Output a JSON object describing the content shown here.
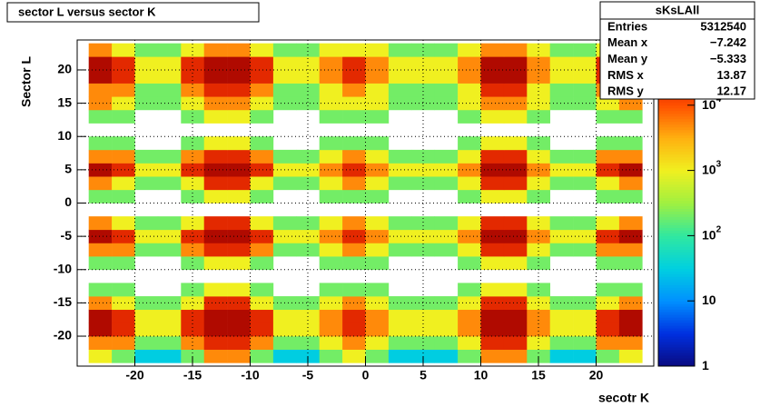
{
  "chart_data": {
    "type": "heatmap",
    "title": "sector L versus sector K",
    "x_label": "secotr K",
    "y_label": "Sector L",
    "xlim": [
      -25,
      25
    ],
    "ylim": [
      -24.5,
      24.5
    ],
    "xticks": [
      -20,
      -15,
      -10,
      -5,
      0,
      5,
      10,
      15,
      20
    ],
    "yticks": [
      -20,
      -15,
      -10,
      -5,
      0,
      5,
      10,
      15,
      20
    ],
    "grid": true,
    "z_scale": "log",
    "zlim": [
      1,
      100000
    ],
    "zticks": [
      {
        "value": 1,
        "label": "1"
      },
      {
        "value": 10,
        "label": "10"
      },
      {
        "value": 100,
        "label": "10",
        "exponent": "2"
      },
      {
        "value": 1000,
        "label": "10",
        "exponent": "3"
      },
      {
        "value": 10000,
        "label": "10",
        "exponent": "4"
      }
    ],
    "palette": [
      "#0a0a80",
      "#0030e0",
      "#0090ff",
      "#00d0e0",
      "#30e8a0",
      "#a0f040",
      "#f0f020",
      "#ffb010",
      "#ff5000",
      "#d01000",
      "#800000"
    ],
    "x_bins": [
      -24,
      -22,
      -20,
      -18,
      -16,
      -14,
      -12,
      -10,
      -8,
      -6,
      -4,
      -2,
      0,
      2,
      4,
      6,
      8,
      10,
      12,
      14,
      16,
      18,
      20,
      22,
      24
    ],
    "y_bins": [
      -24,
      -22,
      -20,
      -18,
      -16,
      -14,
      -12,
      -10,
      -8,
      -6,
      -4,
      -2,
      0,
      2,
      4,
      6,
      8,
      10,
      12,
      14,
      16,
      18,
      20,
      22,
      24
    ],
    "z": [
      [
        1000,
        200,
        30,
        30,
        200,
        5000,
        5000,
        200,
        30,
        30,
        200,
        1000,
        200,
        30,
        30,
        30,
        200,
        5000,
        5000,
        200,
        30,
        30,
        200,
        1000
      ],
      [
        5000,
        5000,
        200,
        200,
        5000,
        20000,
        20000,
        5000,
        200,
        200,
        1000,
        5000,
        1000,
        200,
        200,
        200,
        1000,
        20000,
        20000,
        1000,
        200,
        200,
        5000,
        5000
      ],
      [
        50000,
        20000,
        1000,
        1000,
        20000,
        50000,
        50000,
        20000,
        1000,
        1000,
        5000,
        20000,
        5000,
        1000,
        1000,
        1000,
        5000,
        50000,
        50000,
        5000,
        1000,
        1000,
        20000,
        50000
      ],
      [
        50000,
        20000,
        1000,
        1000,
        20000,
        50000,
        50000,
        20000,
        1000,
        1000,
        5000,
        20000,
        5000,
        1000,
        1000,
        1000,
        5000,
        50000,
        50000,
        5000,
        1000,
        1000,
        20000,
        50000
      ],
      [
        5000,
        1000,
        200,
        200,
        1000,
        20000,
        20000,
        1000,
        200,
        200,
        1000,
        5000,
        1000,
        200,
        200,
        200,
        1000,
        20000,
        20000,
        1000,
        200,
        200,
        1000,
        5000
      ],
      [
        200,
        200,
        0,
        0,
        200,
        1000,
        1000,
        200,
        0,
        0,
        200,
        200,
        200,
        0,
        0,
        0,
        200,
        1000,
        1000,
        200,
        0,
        0,
        200,
        200
      ],
      [
        0,
        0,
        0,
        0,
        0,
        0,
        0,
        0,
        0,
        0,
        0,
        0,
        0,
        0,
        0,
        0,
        0,
        0,
        0,
        0,
        0,
        0,
        0,
        0
      ],
      [
        200,
        200,
        0,
        0,
        200,
        1000,
        1000,
        200,
        0,
        0,
        200,
        200,
        200,
        0,
        0,
        0,
        200,
        1000,
        1000,
        200,
        0,
        0,
        200,
        200
      ],
      [
        5000,
        5000,
        200,
        200,
        5000,
        20000,
        20000,
        5000,
        200,
        200,
        1000,
        5000,
        1000,
        200,
        200,
        200,
        1000,
        20000,
        20000,
        1000,
        200,
        200,
        5000,
        5000
      ],
      [
        50000,
        20000,
        1000,
        1000,
        20000,
        50000,
        50000,
        20000,
        1000,
        1000,
        5000,
        20000,
        5000,
        1000,
        1000,
        1000,
        5000,
        50000,
        50000,
        5000,
        1000,
        1000,
        20000,
        50000
      ],
      [
        5000,
        1000,
        200,
        200,
        1000,
        20000,
        20000,
        1000,
        200,
        200,
        1000,
        5000,
        1000,
        200,
        200,
        200,
        1000,
        20000,
        20000,
        1000,
        200,
        200,
        1000,
        5000
      ],
      [
        0,
        0,
        0,
        0,
        0,
        0,
        0,
        0,
        0,
        0,
        0,
        0,
        0,
        0,
        0,
        0,
        0,
        0,
        0,
        0,
        0,
        0,
        0,
        0
      ],
      [
        200,
        200,
        0,
        0,
        200,
        1000,
        1000,
        200,
        0,
        0,
        200,
        200,
        200,
        0,
        0,
        0,
        200,
        1000,
        1000,
        200,
        0,
        0,
        200,
        200
      ],
      [
        5000,
        1000,
        200,
        200,
        1000,
        20000,
        20000,
        1000,
        200,
        200,
        1000,
        5000,
        1000,
        200,
        200,
        200,
        1000,
        20000,
        20000,
        1000,
        200,
        200,
        1000,
        5000
      ],
      [
        50000,
        20000,
        1000,
        1000,
        20000,
        50000,
        50000,
        20000,
        1000,
        1000,
        5000,
        20000,
        5000,
        1000,
        1000,
        1000,
        5000,
        50000,
        50000,
        5000,
        1000,
        1000,
        20000,
        50000
      ],
      [
        5000,
        5000,
        200,
        200,
        5000,
        20000,
        20000,
        5000,
        200,
        200,
        1000,
        5000,
        1000,
        200,
        200,
        200,
        1000,
        20000,
        20000,
        1000,
        200,
        200,
        5000,
        5000
      ],
      [
        200,
        200,
        0,
        0,
        200,
        1000,
        1000,
        200,
        0,
        0,
        200,
        200,
        200,
        0,
        0,
        0,
        200,
        1000,
        1000,
        200,
        0,
        0,
        200,
        200
      ],
      [
        0,
        0,
        0,
        0,
        0,
        0,
        0,
        0,
        0,
        0,
        0,
        0,
        0,
        0,
        0,
        0,
        0,
        0,
        0,
        0,
        0,
        0,
        0,
        0
      ],
      [
        200,
        200,
        0,
        0,
        200,
        1000,
        1000,
        200,
        0,
        0,
        200,
        200,
        200,
        0,
        0,
        0,
        200,
        1000,
        1000,
        200,
        0,
        0,
        200,
        200
      ],
      [
        5000,
        1000,
        200,
        200,
        1000,
        5000,
        5000,
        1000,
        200,
        200,
        1000,
        1000,
        1000,
        200,
        200,
        200,
        1000,
        5000,
        5000,
        1000,
        200,
        200,
        1000,
        5000
      ],
      [
        5000,
        5000,
        200,
        200,
        5000,
        20000,
        20000,
        5000,
        200,
        200,
        1000,
        5000,
        1000,
        200,
        200,
        200,
        1000,
        20000,
        20000,
        1000,
        200,
        200,
        5000,
        5000
      ],
      [
        50000,
        20000,
        1000,
        1000,
        20000,
        50000,
        50000,
        20000,
        1000,
        1000,
        5000,
        20000,
        5000,
        1000,
        1000,
        1000,
        5000,
        50000,
        50000,
        5000,
        1000,
        1000,
        20000,
        50000
      ],
      [
        50000,
        20000,
        1000,
        1000,
        20000,
        50000,
        50000,
        20000,
        1000,
        1000,
        5000,
        20000,
        5000,
        1000,
        1000,
        1000,
        5000,
        50000,
        50000,
        5000,
        1000,
        1000,
        20000,
        50000
      ],
      [
        5000,
        1000,
        200,
        200,
        1000,
        5000,
        5000,
        1000,
        200,
        200,
        1000,
        1000,
        1000,
        200,
        200,
        200,
        1000,
        5000,
        5000,
        1000,
        200,
        200,
        1000,
        5000
      ]
    ],
    "stats": {
      "title": "sKsLAll",
      "rows": [
        [
          "Entries",
          "5312540"
        ],
        [
          "Mean x",
          "−7.242"
        ],
        [
          "Mean y",
          "−5.333"
        ],
        [
          "RMS x",
          "13.87"
        ],
        [
          "RMS y",
          "12.17"
        ]
      ]
    }
  }
}
